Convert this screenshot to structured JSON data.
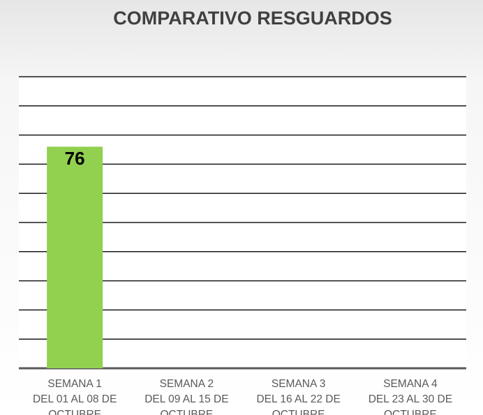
{
  "chart_data": {
    "type": "bar",
    "title": "COMPARATIVO RESGUARDOS",
    "categories": [
      [
        "SEMANA 1",
        "DEL 01 AL 08 DE",
        "OCTUBRE"
      ],
      [
        "SEMANA 2",
        "DEL 09 AL 15 DE",
        "OCTUBRE"
      ],
      [
        "SEMANA 3",
        "DEL 16 AL 22 DE",
        "OCTUBRE"
      ],
      [
        "SEMANA 4",
        "DEL 23 AL 30 DE",
        "OCTUBRE"
      ]
    ],
    "values": [
      76,
      null,
      null,
      null
    ],
    "color": "#92d050",
    "ylim": [
      0,
      100
    ],
    "yticks": [
      0,
      10,
      20,
      30,
      40,
      50,
      60,
      70,
      80,
      90,
      100
    ],
    "grid": true
  }
}
